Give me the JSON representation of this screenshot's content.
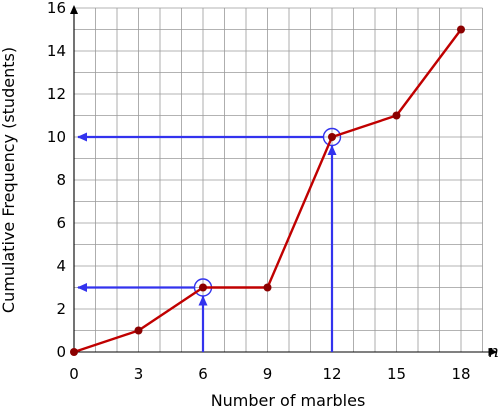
{
  "chart_data": {
    "type": "line",
    "xlabel": "Number of marbles",
    "ylabel": "Cumulative Frequency (students)",
    "x_axis_variable": "n",
    "xlim": [
      0,
      19
    ],
    "ylim": [
      0,
      16
    ],
    "x_ticks": [
      0,
      3,
      6,
      9,
      12,
      15,
      18
    ],
    "y_ticks": [
      0,
      2,
      4,
      6,
      8,
      10,
      12,
      14,
      16
    ],
    "grid": true,
    "grid_x_step": 1,
    "grid_y_step": 1,
    "series": [
      {
        "color": "#c00000",
        "x": [
          0,
          3,
          6,
          9,
          12,
          15,
          18
        ],
        "y": [
          0,
          1,
          3,
          3,
          10,
          11,
          15
        ]
      }
    ],
    "readings": [
      {
        "x": 6,
        "y": 3,
        "color": "#3333ee"
      },
      {
        "x": 12,
        "y": 10,
        "color": "#3333ee"
      }
    ]
  }
}
